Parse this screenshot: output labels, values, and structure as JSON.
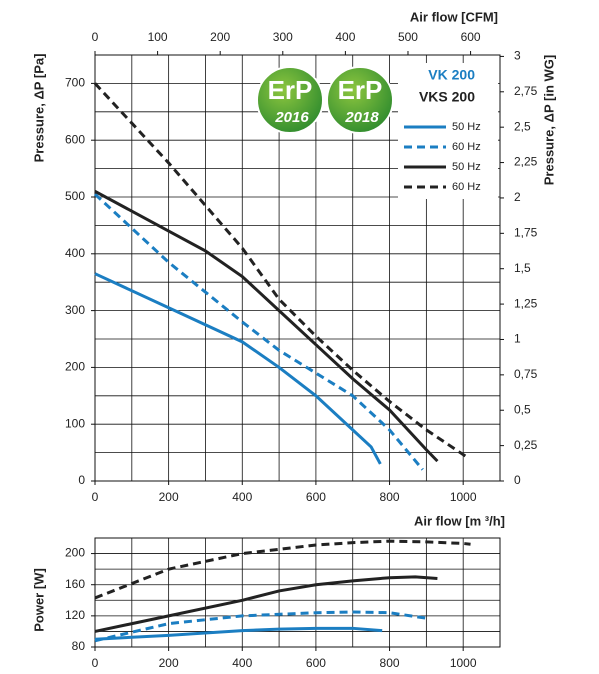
{
  "chart_data": [
    {
      "type": "line",
      "xlabel": "Air flow [m ³/h]",
      "x2label": "Air flow [CFM]",
      "ylabel": "Pressure, ΔP [Pa]",
      "y2label": "Pressure, ΔP [in WG]",
      "xlim": [
        0,
        1100
      ],
      "xticks": [
        0,
        200,
        400,
        600,
        800,
        1000
      ],
      "x2lim": [
        0,
        647
      ],
      "x2ticks": [
        0,
        100,
        200,
        300,
        400,
        500,
        600
      ],
      "ylim": [
        0,
        750
      ],
      "yticks": [
        0,
        100,
        200,
        300,
        400,
        500,
        600,
        700
      ],
      "y2lim": [
        0,
        3.01
      ],
      "y2ticks": [
        0,
        {
          "value": 0.25,
          "label": "0,25"
        },
        {
          "value": 0.5,
          "label": "0,5"
        },
        {
          "value": 0.75,
          "label": "0,75"
        },
        1,
        {
          "value": 1.25,
          "label": "1,25"
        },
        {
          "value": 1.5,
          "label": "1,5"
        },
        {
          "value": 1.75,
          "label": "1,75"
        },
        2,
        {
          "value": 2.25,
          "label": "2,25"
        },
        {
          "value": 2.5,
          "label": "2,5"
        },
        {
          "value": 2.75,
          "label": "2,75"
        },
        3
      ],
      "grid": true,
      "xgrid": [
        0,
        100,
        200,
        300,
        400,
        500,
        600,
        700,
        800,
        900,
        1000,
        1100
      ],
      "ygrid": [
        0,
        50,
        100,
        150,
        200,
        250,
        300,
        350,
        400,
        450,
        500,
        550,
        600,
        650,
        700,
        750
      ],
      "legend_loc": "upper right",
      "badges": [
        {
          "text": "ErP",
          "year": "2016"
        },
        {
          "text": "ErP",
          "year": "2018"
        }
      ],
      "series": [
        {
          "name": "50 Hz",
          "group": "VK 200",
          "color": "#1b7ec2",
          "dashed": false,
          "x": [
            0,
            200,
            400,
            500,
            600,
            700,
            750,
            775
          ],
          "values": [
            365,
            305,
            245,
            200,
            150,
            90,
            60,
            30
          ]
        },
        {
          "name": "60 Hz",
          "group": "VK 200",
          "color": "#1b7ec2",
          "dashed": true,
          "x": [
            0,
            200,
            400,
            500,
            600,
            700,
            800,
            890
          ],
          "values": [
            505,
            385,
            280,
            230,
            190,
            150,
            90,
            20
          ]
        },
        {
          "name": "50 Hz",
          "group": "VKS 200",
          "color": "#222222",
          "dashed": false,
          "x": [
            0,
            200,
            300,
            400,
            500,
            600,
            700,
            800,
            900,
            930
          ],
          "values": [
            510,
            440,
            405,
            360,
            300,
            240,
            180,
            125,
            55,
            35
          ]
        },
        {
          "name": "60 Hz",
          "group": "VKS 200",
          "color": "#222222",
          "dashed": true,
          "x": [
            0,
            200,
            400,
            500,
            600,
            700,
            800,
            900,
            1015
          ],
          "values": [
            700,
            560,
            410,
            320,
            255,
            195,
            140,
            90,
            40
          ]
        }
      ]
    },
    {
      "type": "line",
      "ylabel": "Power [W]",
      "xlim": [
        0,
        1100
      ],
      "xticks": [
        0,
        200,
        400,
        600,
        800,
        1000
      ],
      "ylim": [
        80,
        220
      ],
      "yticks": [
        80,
        120,
        160,
        200
      ],
      "grid": true,
      "xgrid": [
        0,
        100,
        200,
        300,
        400,
        500,
        600,
        700,
        800,
        900,
        1000,
        1100
      ],
      "ygrid": [
        80,
        100,
        120,
        140,
        160,
        180,
        200,
        220
      ],
      "series": [
        {
          "color": "#1b7ec2",
          "dashed": false,
          "x": [
            0,
            200,
            400,
            500,
            600,
            700,
            780
          ],
          "values": [
            90,
            95,
            101,
            103,
            104,
            104,
            101
          ]
        },
        {
          "color": "#1b7ec2",
          "dashed": true,
          "x": [
            0,
            200,
            400,
            600,
            700,
            800,
            900
          ],
          "values": [
            88,
            110,
            120,
            124,
            125,
            124,
            117
          ]
        },
        {
          "color": "#222222",
          "dashed": false,
          "x": [
            0,
            200,
            400,
            500,
            600,
            700,
            800,
            870,
            930
          ],
          "values": [
            100,
            120,
            140,
            152,
            160,
            165,
            169,
            170,
            168
          ]
        },
        {
          "color": "#222222",
          "dashed": true,
          "x": [
            0,
            200,
            400,
            600,
            700,
            800,
            900,
            1000,
            1020
          ],
          "values": [
            143,
            180,
            200,
            211,
            214,
            216,
            215,
            213,
            212
          ]
        }
      ]
    }
  ]
}
